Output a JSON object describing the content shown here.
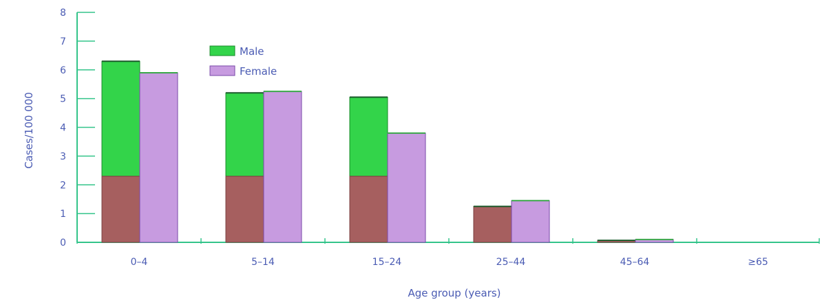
{
  "colors": {
    "text": "#4a5bb3",
    "axis": "#33c48a",
    "axis_inner": "#8a3fc9",
    "male": "#33d44a",
    "male_edge": "#1a8a2a",
    "female": "#c79be0",
    "female_edge": "#7a4aa8",
    "lower_segment": "#a65f5f"
  },
  "chart_data": {
    "type": "bar",
    "categories": [
      "0–4",
      "5–14",
      "15–24",
      "25–44",
      "45–64",
      "≥65"
    ],
    "series": [
      {
        "name": "Male",
        "values": [
          6.3,
          5.2,
          5.05,
          1.25,
          0.07,
          0
        ]
      },
      {
        "name": "Female",
        "values": [
          5.9,
          5.25,
          3.8,
          1.45,
          0.1,
          0
        ]
      }
    ],
    "lower_band_value": 2.3,
    "xlabel": "Age group (years)",
    "ylabel": "Cases/100 000",
    "ylim": [
      0,
      8
    ],
    "yticks": [
      0,
      1,
      2,
      3,
      4,
      5,
      6,
      7,
      8
    ],
    "grid": false,
    "legend": {
      "position": "top-center",
      "entries": [
        "Male",
        "Female"
      ]
    }
  }
}
